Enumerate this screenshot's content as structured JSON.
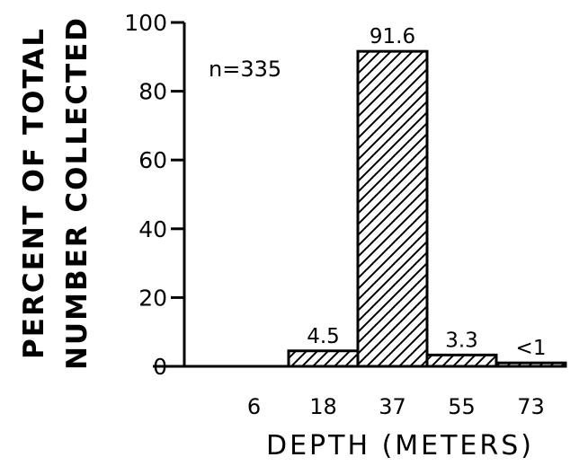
{
  "chart_data": {
    "type": "bar",
    "title": "",
    "xlabel": "DEPTH (METERS)",
    "ylabel_lines": [
      "PERCENT OF TOTAL",
      "NUMBER COLLECTED"
    ],
    "categories": [
      "6",
      "18",
      "37",
      "55",
      "73"
    ],
    "values": [
      0,
      4.5,
      91.6,
      3.3,
      1
    ],
    "data_labels": [
      "",
      "4.5",
      "91.6",
      "3.3",
      "<1"
    ],
    "ylim": [
      0,
      100
    ],
    "yticks": [
      "0",
      "20",
      "40",
      "60",
      "80",
      "100"
    ],
    "annotation": "n=335",
    "bar_fill": "diagonal-hatch",
    "bar_color": "#000000",
    "grid": false
  }
}
